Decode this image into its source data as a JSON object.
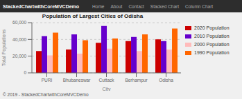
{
  "chart_data": {
    "type": "bar",
    "title": "Population of Largest Cities of Odisha",
    "xlabel": "City",
    "ylabel": "Total Populations",
    "categories": [
      "PURI",
      "Bhubaneswar",
      "Cuttack",
      "Berhampur",
      "Odisha"
    ],
    "series": [
      {
        "name": "2020 Population",
        "color": "#cc0000",
        "values": [
          26000,
          28000,
          36000,
          38000,
          40000
        ]
      },
      {
        "name": "2010 Population",
        "color": "#6600cc",
        "values": [
          44000,
          46000,
          56000,
          43000,
          38000
        ]
      },
      {
        "name": "2000 Population",
        "color": "#ffbbbb",
        "values": [
          21000,
          23000,
          29000,
          26000,
          28000
        ]
      },
      {
        "name": "1990 Population",
        "color": "#ff6600",
        "values": [
          48000,
          39000,
          41000,
          46000,
          53000
        ]
      }
    ],
    "ylim": [
      0,
      60000
    ],
    "yticks": [
      0,
      {
        "value": 20000,
        "label": "20,000"
      },
      {
        "value": 40000,
        "label": "40,000"
      },
      {
        "value": 60000,
        "label": "60,000"
      }
    ],
    "grid": true,
    "legend": "right",
    "annotations": [
      "StackedChartwithCoreMVCDemo",
      "Home",
      "About",
      "Contact",
      "Stacked Chart",
      "Column Chart",
      "© 2019 - StackedChartwithCoreMVCDemo"
    ]
  }
}
